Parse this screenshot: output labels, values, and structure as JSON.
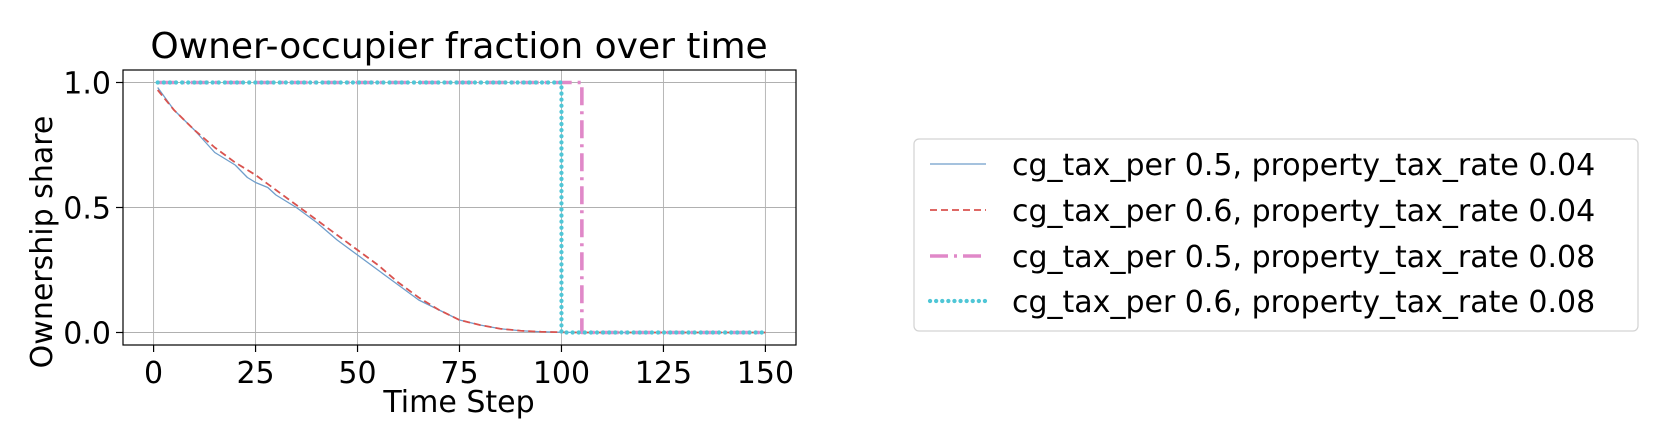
{
  "chart_data": {
    "type": "line",
    "title": "Owner-occupier fraction over time",
    "xlabel": "Time Step",
    "ylabel": "Ownership share",
    "xlim": [
      -7.5,
      157.5
    ],
    "ylim": [
      -0.05,
      1.05
    ],
    "xticks": [
      0,
      25,
      50,
      75,
      100,
      125,
      150
    ],
    "yticks": [
      0.0,
      0.5,
      1.0
    ],
    "xtick_labels": [
      "0",
      "25",
      "50",
      "75",
      "100",
      "125",
      "150"
    ],
    "ytick_labels": [
      "0.0",
      "0.5",
      "1.0"
    ],
    "grid": true,
    "legend_position": "outside-right",
    "series": [
      {
        "name": "cg_tax_per 0.5, property_tax_rate 0.04",
        "color": "#6f9ecb",
        "style": "solid",
        "x": [
          1,
          5,
          10,
          15,
          20,
          23,
          25,
          28,
          30,
          35,
          40,
          45,
          50,
          55,
          60,
          65,
          70,
          75,
          80,
          85,
          90,
          95,
          100,
          105,
          110,
          120,
          130,
          140,
          150
        ],
        "y": [
          0.98,
          0.89,
          0.81,
          0.72,
          0.67,
          0.62,
          0.6,
          0.58,
          0.55,
          0.5,
          0.44,
          0.37,
          0.31,
          0.25,
          0.19,
          0.13,
          0.09,
          0.05,
          0.03,
          0.015,
          0.007,
          0.003,
          0.001,
          0.0,
          0.0,
          0.0,
          0.0,
          0.0,
          0.0
        ]
      },
      {
        "name": "cg_tax_per 0.6, property_tax_rate 0.04",
        "color": "#d9534f",
        "style": "dashed",
        "x": [
          1,
          5,
          10,
          15,
          20,
          25,
          30,
          35,
          40,
          45,
          50,
          55,
          60,
          65,
          70,
          75,
          80,
          85,
          90,
          95,
          100,
          105,
          110,
          120,
          130,
          140,
          150
        ],
        "y": [
          0.97,
          0.89,
          0.81,
          0.74,
          0.68,
          0.63,
          0.57,
          0.51,
          0.45,
          0.39,
          0.33,
          0.27,
          0.2,
          0.14,
          0.09,
          0.05,
          0.03,
          0.015,
          0.007,
          0.003,
          0.001,
          0.0,
          0.0,
          0.0,
          0.0,
          0.0,
          0.0
        ]
      },
      {
        "name": "cg_tax_per 0.5, property_tax_rate 0.08",
        "color": "#e088c8",
        "style": "dashdot",
        "x": [
          1,
          105,
          105,
          106,
          150
        ],
        "y": [
          1.0,
          1.0,
          0.0,
          0.0,
          0.0
        ]
      },
      {
        "name": "cg_tax_per 0.6, property_tax_rate 0.08",
        "color": "#4fc6d6",
        "style": "dotted",
        "x": [
          1,
          100,
          100,
          101,
          150
        ],
        "y": [
          1.0,
          1.0,
          0.0,
          0.0,
          0.0
        ]
      }
    ]
  }
}
